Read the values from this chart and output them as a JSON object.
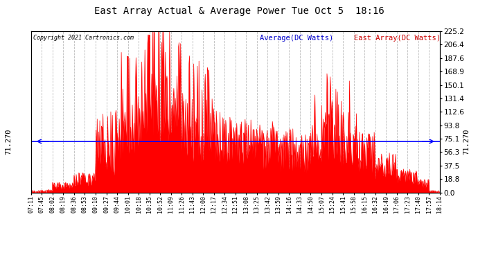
{
  "title": "East Array Actual & Average Power Tue Oct 5  18:16",
  "copyright": "Copyright 2021 Cartronics.com",
  "legend_average": "Average(DC Watts)",
  "legend_east": "East Array(DC Watts)",
  "average_line_value": 71.27,
  "y_right_ticks": [
    0.0,
    18.8,
    37.5,
    56.3,
    75.1,
    93.8,
    112.6,
    131.4,
    150.1,
    168.9,
    187.6,
    206.4,
    225.2
  ],
  "y_max": 225.2,
  "y_min": 0.0,
  "color_fill": "#ff0000",
  "color_avg": "#0000ff",
  "legend_avg_color": "#0000cc",
  "legend_east_color": "#cc0000",
  "background_color": "#ffffff",
  "grid_color": "#bbbbbb",
  "x_labels": [
    "07:11",
    "07:45",
    "08:02",
    "08:19",
    "08:36",
    "08:53",
    "09:10",
    "09:27",
    "09:44",
    "10:01",
    "10:18",
    "10:35",
    "10:52",
    "11:09",
    "11:26",
    "11:43",
    "12:00",
    "12:17",
    "12:34",
    "12:51",
    "13:08",
    "13:25",
    "13:42",
    "13:59",
    "14:16",
    "14:33",
    "14:50",
    "15:07",
    "15:24",
    "15:41",
    "15:58",
    "16:15",
    "16:32",
    "16:49",
    "17:06",
    "17:23",
    "17:40",
    "17:57",
    "18:14"
  ]
}
